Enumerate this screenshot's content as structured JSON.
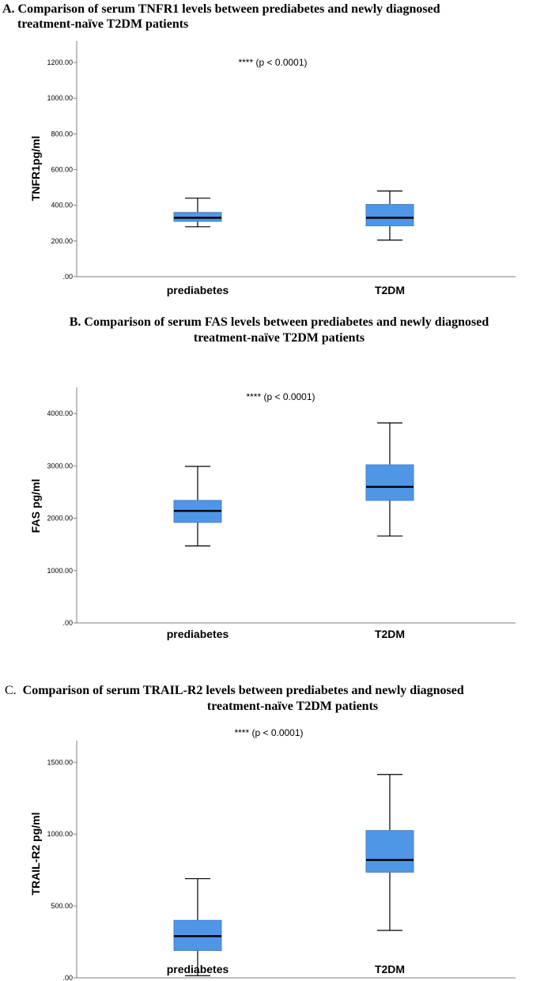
{
  "colors": {
    "box_fill": "#5096e6",
    "box_stroke": "#4a7fc4"
  },
  "chart_data": [
    {
      "type": "box",
      "title_line1": "A. Comparison of serum TNFR1 levels between prediabetes and newly diagnosed",
      "title_line2": "treatment-naïve T2DM patients",
      "ylabel": "TNFR1pg/ml",
      "annotation": "**** (p < 0.0001)",
      "ylim": [
        0,
        1320
      ],
      "ytick_values": [
        0,
        200,
        400,
        600,
        800,
        1000,
        1200
      ],
      "ytick_labels": [
        ".00",
        "200.00",
        "400.00",
        "600.00",
        "800.00",
        "1000.00",
        "1200.00"
      ],
      "categories": [
        "prediabetes",
        "T2DM"
      ],
      "boxes": [
        {
          "min": 280,
          "q1": 310,
          "median": 330,
          "q3": 360,
          "max": 440
        },
        {
          "min": 205,
          "q1": 285,
          "median": 330,
          "q3": 405,
          "max": 480
        }
      ]
    },
    {
      "type": "box",
      "title_line1": "B.  Comparison of serum FAS levels between prediabetes and newly diagnosed",
      "title_line2": "treatment-naïve T2DM patients",
      "ylabel": "FAS pg/ml",
      "annotation": "**** (p < 0.0001)",
      "ylim": [
        0,
        4500
      ],
      "ytick_values": [
        0,
        1000,
        2000,
        3000,
        4000
      ],
      "ytick_labels": [
        ".00",
        "1000.00",
        "2000.00",
        "3000.00",
        "4000.00"
      ],
      "categories": [
        "prediabetes",
        "T2DM"
      ],
      "boxes": [
        {
          "min": 1470,
          "q1": 1920,
          "median": 2140,
          "q3": 2340,
          "max": 2990
        },
        {
          "min": 1660,
          "q1": 2340,
          "median": 2600,
          "q3": 3020,
          "max": 3820
        }
      ]
    },
    {
      "type": "box",
      "title_line1_prefix": "C.",
      "title_line1": "Comparison of serum TRAIL-R2  levels between prediabetes and newly diagnosed",
      "title_line2": "treatment-naïve T2DM patients",
      "ylabel": "TRAIL-R2 pg/ml",
      "annotation": "**** (p < 0.0001)",
      "ylim": [
        0,
        1650
      ],
      "ytick_values": [
        0,
        500,
        1000,
        1500
      ],
      "ytick_labels": [
        ".00",
        "500.00",
        "1000.00",
        "1500.00"
      ],
      "categories": [
        "prediabetes",
        "T2DM"
      ],
      "boxes": [
        {
          "min": 15,
          "q1": 190,
          "median": 290,
          "q3": 400,
          "max": 690
        },
        {
          "min": 330,
          "q1": 735,
          "median": 820,
          "q3": 1025,
          "max": 1415
        }
      ]
    }
  ]
}
